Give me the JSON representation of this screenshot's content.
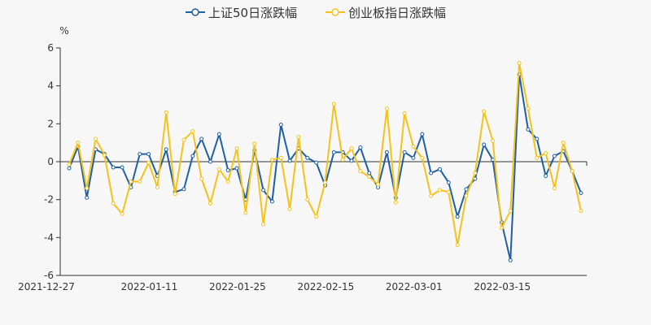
{
  "chart_data": {
    "type": "line",
    "unit_label": "%",
    "ylim": [
      -6,
      6
    ],
    "y_ticks": [
      -6,
      -4,
      -2,
      0,
      2,
      4,
      6
    ],
    "x_tick_labels": [
      {
        "index": 0,
        "label": "2021-12-27"
      },
      {
        "index": 10,
        "label": "2022-01-11"
      },
      {
        "index": 20,
        "label": "2022-01-25"
      },
      {
        "index": 30,
        "label": "2022-02-15"
      },
      {
        "index": 40,
        "label": "2022-03-01"
      },
      {
        "index": 50,
        "label": "2022-03-15"
      }
    ],
    "legend_position": "top-center",
    "series": [
      {
        "name": "上证50日涨跌幅",
        "color": "#1f5fa5",
        "values": [
          -0.35,
          0.8,
          -1.9,
          0.65,
          0.4,
          -0.3,
          -0.3,
          -1.35,
          0.4,
          0.4,
          -0.75,
          0.65,
          -1.6,
          -1.45,
          0.3,
          1.2,
          0.0,
          1.45,
          -0.45,
          -0.35,
          -2.0,
          0.6,
          -1.5,
          -2.1,
          1.95,
          0.05,
          0.7,
          0.2,
          -0.05,
          -1.25,
          0.5,
          0.5,
          0.05,
          0.75,
          -0.6,
          -1.35,
          0.5,
          -1.9,
          0.5,
          0.2,
          1.45,
          -0.6,
          -0.4,
          -1.1,
          -2.9,
          -1.45,
          -0.9,
          0.9,
          0.1,
          -3.2,
          -5.2,
          4.6,
          1.7,
          1.2,
          -0.75,
          0.3,
          0.55,
          -0.5,
          -1.65
        ]
      },
      {
        "name": "创业板指日涨跌幅",
        "color": "#f5c21a",
        "values": [
          -0.15,
          1.0,
          -1.4,
          1.2,
          0.35,
          -2.2,
          -2.75,
          -1.05,
          -1.05,
          -0.05,
          -1.35,
          2.6,
          -1.7,
          1.15,
          1.6,
          -0.9,
          -2.2,
          -0.4,
          -1.05,
          0.7,
          -2.7,
          0.95,
          -3.3,
          0.1,
          0.2,
          -2.5,
          1.3,
          -2.0,
          -2.9,
          -1.1,
          3.05,
          0.1,
          0.7,
          -0.5,
          -0.8,
          -1.2,
          2.8,
          -2.15,
          2.55,
          0.8,
          0.2,
          -1.8,
          -1.5,
          -1.6,
          -4.4,
          -1.8,
          -0.6,
          2.65,
          1.1,
          -3.5,
          -2.6,
          5.2,
          2.8,
          0.2,
          0.45,
          -1.4,
          1.0,
          -0.5,
          -2.6
        ]
      }
    ]
  }
}
